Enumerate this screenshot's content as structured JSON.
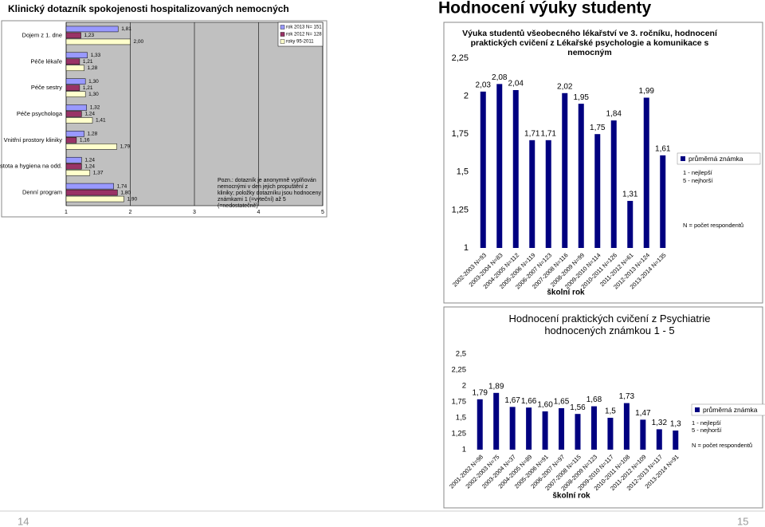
{
  "header": {
    "left_title": "Klinický dotazník spokojenosti hospitalizovaných nemocných",
    "right_title": "Hodnocení výuky studenty"
  },
  "footer": {
    "left_page": 14,
    "right_page": 15
  },
  "chart_data": [
    {
      "type": "hbar",
      "categories": [
        "Dojem z 1. dne",
        "Péče lékaře",
        "Péče sestry",
        "Péče psychologa",
        "Vnitřní prostory kliniky",
        "Čistota a hygiena na odd.",
        "Denní program"
      ],
      "series": [
        {
          "name": "rok 2013 N= 151",
          "color": "#9999ff",
          "values": [
            1.81,
            1.33,
            1.3,
            1.32,
            1.28,
            1.24,
            1.74
          ],
          "value_labels": [
            "1,81",
            "1,33",
            "1,30",
            "1,32",
            "1,28",
            "1,24",
            "1,74"
          ]
        },
        {
          "name": "rok 2012 N= 128",
          "color": "#993366",
          "values": [
            1.23,
            1.21,
            1.21,
            1.24,
            1.16,
            1.24,
            1.8
          ],
          "value_labels": [
            "1,23",
            "1,21",
            "1,21",
            "1,24",
            "1,16",
            "1,24",
            "1,80"
          ]
        },
        {
          "name": "roky 95-2011",
          "color": "#ffffcc",
          "values": [
            2.0,
            1.28,
            1.3,
            1.41,
            1.79,
            1.37,
            1.9
          ],
          "value_labels": [
            "2,00",
            "1,28",
            "1,30",
            "1,41",
            "1,79",
            "1,37",
            "1,90"
          ]
        }
      ],
      "xlim": [
        1,
        5
      ],
      "xticks": [
        1,
        2,
        3,
        4,
        5
      ],
      "grid": true,
      "note": "Pozn.: dotazník je anonymně vyplňován nemocnými v den jejich propuštění z kliniky; položky dotazníku jsou hodnoceny známkami 1 (=vyteční) až 5 (=nedostatečně)"
    },
    {
      "type": "bar",
      "title": "Výuka studentů všeobecného lékařství ve 3. ročníku, hodnocení praktických cvičení z Lékařské psychologie a komunikace s nemocným",
      "categories": [
        "2002-2003 N=93",
        "2003-2004 N=83",
        "2004-2005 N=112",
        "2005-2006 N=119",
        "2006-2007 N=123",
        "2007-2008 N=116",
        "2008-2009 N=99",
        "2009-2010 N=114",
        "2010-2011 N=126",
        "2011-2012 N=61",
        "2012-2013 N=124",
        "2013-2014 N=135"
      ],
      "series": [
        {
          "name": "průměrná známka",
          "color": "#000080",
          "values": [
            2.03,
            2.08,
            2.04,
            1.71,
            1.71,
            2.02,
            1.95,
            1.75,
            1.84,
            1.31,
            1.99,
            1.61
          ],
          "value_labels": [
            "2,03",
            "2,08",
            "2,04",
            "1,71",
            "1,71",
            "2,02",
            "1,95",
            "1,75",
            "1,84",
            "1,31",
            "1,99",
            "1,61"
          ]
        }
      ],
      "ylim": [
        1,
        2.25
      ],
      "yticks": [
        1,
        {
          "value": 1.25,
          "label": "1,25"
        },
        {
          "value": 1.5,
          "label": "1,5"
        },
        {
          "value": 1.75,
          "label": "1,75"
        },
        2,
        {
          "value": 2.25,
          "label": "2,25"
        }
      ],
      "x_label": "školní rok",
      "notes": [
        "1 - nejlepší",
        "5 - nejhorší",
        "N = počet respondentů"
      ],
      "grid": false
    },
    {
      "type": "bar",
      "title": "Hodnocení praktických cvičení z Psychiatrie hodnocených známkou 1 - 5",
      "categories": [
        "2001-2002 N=98",
        "2002-2003 N=75",
        "2003-2004 N=37",
        "2004-2005 N=89",
        "2005-2006 N=91",
        "2006-2007 N=97",
        "2007-2008 N=115",
        "2008-2009 N=123",
        "2009-2010 N=117",
        "2010-2011 N=108",
        "2011-2012 N=109",
        "2012-2013 N=117",
        "2013-2014 N=91"
      ],
      "series": [
        {
          "name": "průměrná známka",
          "color": "#000080",
          "values": [
            1.79,
            1.89,
            1.67,
            1.66,
            1.6,
            1.65,
            1.56,
            1.68,
            1.5,
            1.73,
            1.47,
            1.32,
            1.3
          ],
          "value_labels": [
            "1,79",
            "1,89",
            "1,67",
            "1,66",
            "1,60",
            "1,65",
            "1,56",
            "1,68",
            "1,5",
            "1,73",
            "1,47",
            "1,32",
            "1,3"
          ]
        }
      ],
      "ylim": [
        1,
        2.5
      ],
      "yticks": [
        1,
        {
          "value": 1.25,
          "label": "1,25"
        },
        {
          "value": 1.5,
          "label": "1,5"
        },
        {
          "value": 1.75,
          "label": "1,75"
        },
        2,
        {
          "value": 2.25,
          "label": "2,25"
        },
        {
          "value": 2.5,
          "label": "2,5"
        }
      ],
      "x_label": "školní rok",
      "notes": [
        "1 - nejlepší",
        "5 - nejhorší",
        "N = počet respondentů"
      ],
      "grid": false
    }
  ]
}
